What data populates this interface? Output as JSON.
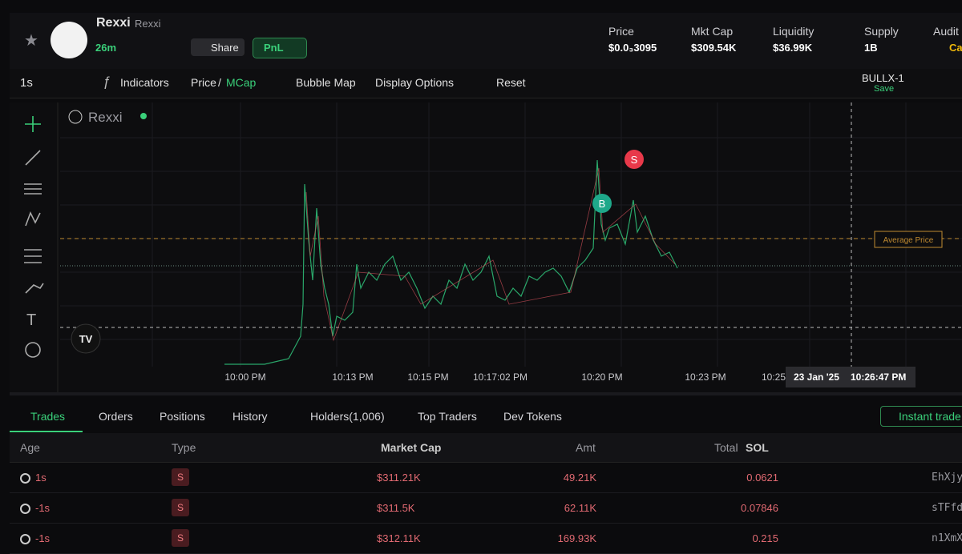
{
  "header": {
    "name": "Rexxi",
    "ticker": "Rexxi",
    "age": "26m",
    "share": "Share",
    "pnl": "PnL",
    "stats": [
      {
        "label": "Price",
        "value": "$0.0₃3095"
      },
      {
        "label": "Mkt Cap",
        "value": "$309.54K"
      },
      {
        "label": "Liquidity",
        "value": "$36.99K"
      },
      {
        "label": "Supply",
        "value": "1B"
      },
      {
        "label": "Audit",
        "value": "Ca"
      }
    ]
  },
  "toolbar": {
    "interval": "1s",
    "indicators": "Indicators",
    "price": "Price",
    "slash": "/",
    "mcap": "MCap",
    "bubble_map": "Bubble Map",
    "display_options": "Display Options",
    "reset": "Reset",
    "layout_name": "BULLX-1",
    "save": "Save"
  },
  "chart": {
    "legend": "Rexxi",
    "buy_marker": "B",
    "sell_marker": "S",
    "average_price": "Average Price",
    "x_labels": [
      "10:00 PM",
      "10:13 PM",
      "10:15 PM",
      "10:17:02 PM",
      "10:20 PM",
      "10:23 PM",
      "10:25"
    ],
    "crosshair_date": "23 Jan '25",
    "crosshair_time": "10:26:47 PM"
  },
  "tabs": [
    "Trades",
    "Orders",
    "Positions",
    "History",
    "Holders(1,006)",
    "Top Traders",
    "Dev Tokens"
  ],
  "instant_trade": "Instant trade",
  "table": {
    "columns": [
      "Age",
      "Type",
      "Market Cap",
      "Amt",
      "Total",
      "SOL"
    ],
    "rows": [
      [
        "1s",
        "S",
        "$311.21K",
        "49.21K",
        "0.0621",
        "EhXjy"
      ],
      [
        "-1s",
        "S",
        "$311.5K",
        "62.11K",
        "0.07846",
        "sTFfd"
      ],
      [
        "-1s",
        "S",
        "$312.11K",
        "169.93K",
        "0.215",
        "n1XmX"
      ]
    ]
  }
}
